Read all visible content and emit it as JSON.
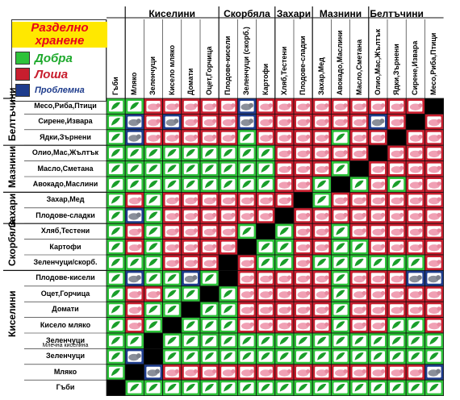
{
  "legend": {
    "title_line1": "Разделно",
    "title_line2": "хранене",
    "good": "Добра",
    "bad": "Лоша",
    "problem": "Проблемна"
  },
  "colors": {
    "good": "#2ec23a",
    "bad": "#c81e2e",
    "problem": "#1e3c8c",
    "self": "#000000"
  },
  "icons": {
    "good": "leaf-icon",
    "bad": "pig-icon",
    "problem": "elephant-icon"
  },
  "column_groups": [
    {
      "label": "Киселини",
      "span": 5
    },
    {
      "label": "Скорбяла",
      "span": 3
    },
    {
      "label": "Захари",
      "span": 2
    },
    {
      "label": "Мазнини",
      "span": 3
    },
    {
      "label": "Белтъчини",
      "span": 3
    }
  ],
  "columns": [
    "Гъби",
    "Мляко",
    "Зеленчуци",
    "Кисело мляко",
    "Домати",
    "Оцет,Горчица",
    "Плодове-кисели",
    "Зеленчуци (скорб.)",
    "Картофи",
    "Хляб,Тестени",
    "Плодове-сладки",
    "Захар,Мед",
    "Авокадо,Маслини",
    "Масло,Сметана",
    "Олио,Мас,Жълтък",
    "Ядки,Зърнени",
    "Сирене,Извара",
    "Месо,Риба,Птици"
  ],
  "row_groups": [
    {
      "label": "Белтъчини",
      "span": 3
    },
    {
      "label": "Мазнини",
      "span": 3
    },
    {
      "label": "Захари",
      "span": 2
    },
    {
      "label": "Скорбяла",
      "span": 3
    },
    {
      "label": "Киселини",
      "span": 6
    }
  ],
  "rows": [
    "Месо,Риба,Птици",
    "Сирене,Извара",
    "Ядки,Зърнени",
    "Олио,Мас,Жълтък",
    "Масло,Сметана",
    "Авокадо,Маслини",
    "Захар,Мед",
    "Плодове-сладки",
    "Хляб,Тестени",
    "Картофи",
    "Зеленчуци/скорб.",
    "Плодове-кисели",
    "Оцет,Горчица",
    "Домати",
    "Кисело  мляко",
    "Зеленчуци",
    "Зеленчуци",
    "Мляко",
    "Гъби"
  ],
  "row_sublabel": "Млечна кисели­на",
  "matrix": [
    "GGRRRRRPRRRRRRRRRX",
    "GPRPRRRPRRRRRRPRXR",
    "GPRRRRRGRRRRGRRXRR",
    "GGGGGGGGGRRRRRXRRR",
    "GGGGGGGGGRRRGXRRRR",
    "GGGGGGGGGRRGXGRGRR",
    "GRGRRRRRRRXGRRRRRR",
    "GPGRRRRRRXRRRRRRRR",
    "GRGRRRRGXGRRGRRRRR",
    "GRGRRRRXGGRRGGRRRR",
    "GGGRRRXRGGRGGGGGGR",
    "GPGGPGXRRRRRGRRRPP",
    "GRRGGXGRRRRRGRRRRR",
    "GRGGXGGRRRRRGRRRRR",
    "GRGXGGGRRRRRGRRGGR",
    "GGXGGGGGGGGGGGGGGG",
    "GPXGGGGGGGGGGGGGGG",
    "GXPRRRRRRRRRRRRRRP",
    "XGGGGGGGGGGGGGGGGG"
  ]
}
